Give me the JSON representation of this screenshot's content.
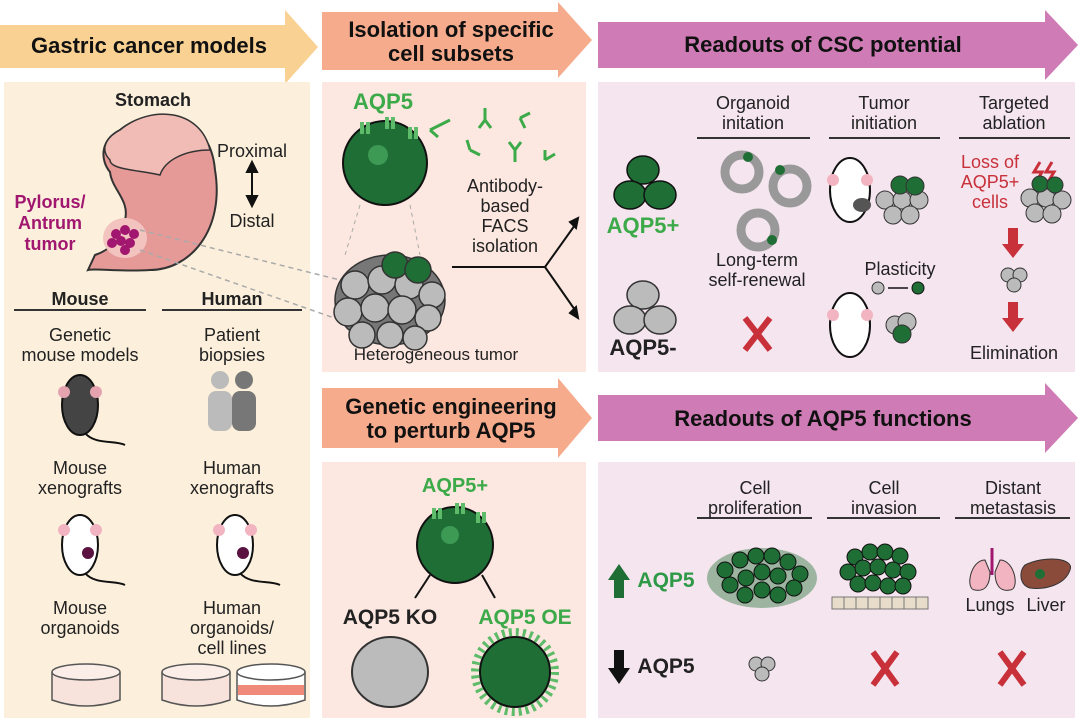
{
  "colors": {
    "models": "#f9d193",
    "isolation": "#f6ab8c",
    "readouts": "#cf7bb5",
    "panel_models": "#fcf0dc",
    "panel_isolation": "#fce8e0",
    "panel_readouts": "#f5e5ef",
    "aqp5_green": "#3daa4a",
    "cell_dark_green": "#1f6e35",
    "red": "#c8303a",
    "tumor_magenta": "#a1166f"
  },
  "models": {
    "header": "Gastric cancer models",
    "stomach": "Stomach",
    "proximal": "Proximal",
    "distal": "Distal",
    "tumor": [
      "Pylorus/",
      "Antrum",
      "tumor"
    ],
    "mouse": {
      "title": "Mouse",
      "items": [
        "Genetic",
        "mouse models",
        "Mouse",
        "xenografts",
        "Mouse",
        "organoids"
      ]
    },
    "human": {
      "title": "Human",
      "items": [
        "Patient",
        "biopsies",
        "Human",
        "xenografts",
        "Human",
        "organoids/",
        "cell lines"
      ]
    }
  },
  "isolation": {
    "header": [
      "Isolation of specific",
      "cell subsets"
    ],
    "aqp5": "AQP5",
    "facs": [
      "Antibody-",
      "based",
      "FACS",
      "isolation"
    ],
    "tumor": "Heterogeneous tumor"
  },
  "engineering": {
    "header": [
      "Genetic engineering",
      "to perturb AQP5"
    ],
    "aqp5_pos": "AQP5+",
    "ko": "AQP5 KO",
    "oe": "AQP5 OE"
  },
  "csc": {
    "header": "Readouts of CSC potential",
    "pos": "AQP5+",
    "neg": "AQP5-",
    "columns": [
      [
        "Organoid",
        "initation"
      ],
      [
        "Tumor",
        "initiation"
      ],
      [
        "Targeted",
        "ablation"
      ]
    ],
    "self_renewal": [
      "Long-term",
      "self-renewal"
    ],
    "plasticity": "Plasticity",
    "loss": [
      "Loss of",
      "AQP5+",
      "cells"
    ],
    "elimination": "Elimination"
  },
  "functions": {
    "header": "Readouts of AQP5 functions",
    "columns": [
      [
        "Cell",
        "proliferation"
      ],
      [
        "Cell",
        "invasion"
      ],
      [
        "Distant",
        "metastasis"
      ]
    ],
    "up": "AQP5",
    "down": "AQP5",
    "lungs": "Lungs",
    "liver": "Liver"
  }
}
